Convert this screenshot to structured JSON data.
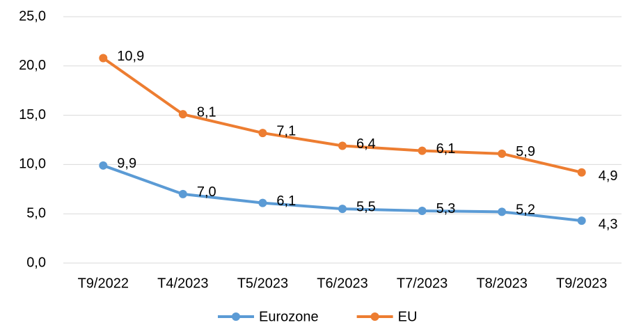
{
  "chart_data": {
    "type": "line",
    "stacked": true,
    "categories": [
      "T9/2022",
      "T4/2023",
      "T5/2023",
      "T6/2023",
      "T7/2023",
      "T8/2023",
      "T9/2023"
    ],
    "series": [
      {
        "name": "Eurozone",
        "color": "#5b9bd5",
        "values": [
          9.9,
          7.0,
          6.1,
          5.5,
          5.3,
          5.2,
          4.3
        ],
        "value_labels": [
          "9,9",
          "7,0",
          "6,1",
          "5,5",
          "5,3",
          "5,2",
          "4,3"
        ]
      },
      {
        "name": "EU",
        "color": "#ed7d31",
        "values": [
          10.9,
          8.1,
          7.1,
          6.4,
          6.1,
          5.9,
          4.9
        ],
        "value_labels": [
          "10,9",
          "8,1",
          "7,1",
          "6,4",
          "6,1",
          "5,9",
          "4,9"
        ]
      }
    ],
    "ylim": [
      0,
      25
    ],
    "yticks": [
      {
        "value": 0,
        "label": "0,0"
      },
      {
        "value": 5,
        "label": "5,0"
      },
      {
        "value": 10,
        "label": "10,0"
      },
      {
        "value": 15,
        "label": "15,0"
      },
      {
        "value": 20,
        "label": "20,0"
      },
      {
        "value": 25,
        "label": "25,0"
      }
    ],
    "grid": true,
    "legend": "bottom"
  }
}
